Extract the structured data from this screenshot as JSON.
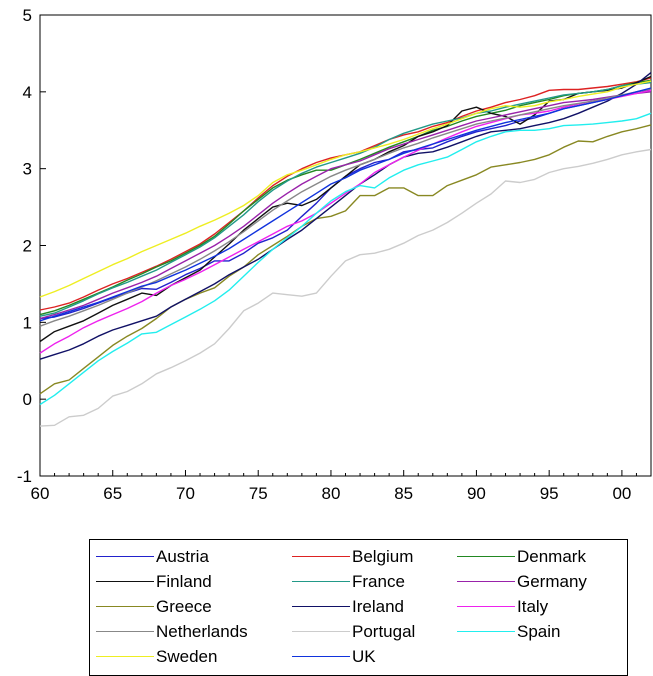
{
  "chart_data": {
    "type": "line",
    "title": "",
    "xlabel": "",
    "ylabel": "",
    "xlim": [
      1960,
      2002
    ],
    "ylim": [
      -1,
      5
    ],
    "y_ticks": [
      -1,
      0,
      1,
      2,
      3,
      4,
      5
    ],
    "x_ticks": [
      {
        "value": 1960,
        "label": "60"
      },
      {
        "value": 1965,
        "label": "65"
      },
      {
        "value": 1970,
        "label": "70"
      },
      {
        "value": 1975,
        "label": "75"
      },
      {
        "value": 1980,
        "label": "80"
      },
      {
        "value": 1985,
        "label": "85"
      },
      {
        "value": 1990,
        "label": "90"
      },
      {
        "value": 1995,
        "label": "95"
      },
      {
        "value": 2000,
        "label": "00"
      }
    ],
    "grid": false,
    "legend_position": "bottom",
    "x": [
      1960,
      1961,
      1962,
      1963,
      1964,
      1965,
      1966,
      1967,
      1968,
      1969,
      1970,
      1971,
      1972,
      1973,
      1974,
      1975,
      1976,
      1977,
      1978,
      1979,
      1980,
      1981,
      1982,
      1983,
      1984,
      1985,
      1986,
      1987,
      1988,
      1989,
      1990,
      1991,
      1992,
      1993,
      1994,
      1995,
      1996,
      1997,
      1998,
      1999,
      2000,
      2001,
      2002
    ],
    "series": [
      {
        "name": "Austria",
        "color": "#2222cc",
        "values": [
          1.05,
          1.07,
          1.12,
          1.18,
          1.25,
          1.32,
          1.38,
          1.44,
          1.43,
          1.52,
          1.62,
          1.7,
          1.8,
          1.8,
          1.9,
          2.03,
          2.1,
          2.2,
          2.38,
          2.55,
          2.75,
          2.9,
          3.0,
          3.08,
          3.12,
          3.22,
          3.25,
          3.27,
          3.35,
          3.42,
          3.48,
          3.52,
          3.56,
          3.62,
          3.66,
          3.72,
          3.78,
          3.82,
          3.86,
          3.9,
          3.95,
          4.0,
          4.03
        ]
      },
      {
        "name": "Belgium",
        "color": "#dd2222",
        "values": [
          1.16,
          1.2,
          1.25,
          1.33,
          1.42,
          1.5,
          1.57,
          1.65,
          1.73,
          1.82,
          1.92,
          2.02,
          2.15,
          2.3,
          2.45,
          2.62,
          2.78,
          2.9,
          3.0,
          3.08,
          3.14,
          3.18,
          3.22,
          3.3,
          3.38,
          3.44,
          3.48,
          3.55,
          3.6,
          3.68,
          3.75,
          3.8,
          3.86,
          3.9,
          3.95,
          4.02,
          4.03,
          4.03,
          4.05,
          4.07,
          4.1,
          4.13,
          4.18
        ]
      },
      {
        "name": "Denmark",
        "color": "#228822",
        "values": [
          1.1,
          1.15,
          1.22,
          1.3,
          1.38,
          1.46,
          1.55,
          1.63,
          1.72,
          1.8,
          1.9,
          2.0,
          2.12,
          2.28,
          2.45,
          2.6,
          2.75,
          2.85,
          2.92,
          2.98,
          2.98,
          3.05,
          3.12,
          3.2,
          3.28,
          3.35,
          3.42,
          3.5,
          3.55,
          3.62,
          3.68,
          3.72,
          3.76,
          3.82,
          3.86,
          3.9,
          3.95,
          3.98,
          4.0,
          4.03,
          4.08,
          4.12,
          4.15
        ]
      },
      {
        "name": "Finland",
        "color": "#111111",
        "values": [
          0.75,
          0.88,
          0.95,
          1.02,
          1.12,
          1.22,
          1.3,
          1.38,
          1.35,
          1.48,
          1.58,
          1.68,
          1.85,
          2.02,
          2.2,
          2.35,
          2.5,
          2.55,
          2.52,
          2.6,
          2.75,
          2.9,
          3.05,
          3.12,
          3.22,
          3.3,
          3.42,
          3.48,
          3.56,
          3.75,
          3.8,
          3.72,
          3.68,
          3.58,
          3.7,
          3.88,
          3.9,
          3.98,
          4.0,
          4.02,
          4.05,
          4.12,
          4.2
        ]
      },
      {
        "name": "France",
        "color": "#229988",
        "values": [
          1.08,
          1.12,
          1.2,
          1.28,
          1.37,
          1.45,
          1.52,
          1.6,
          1.68,
          1.78,
          1.88,
          1.98,
          2.1,
          2.25,
          2.4,
          2.57,
          2.72,
          2.84,
          2.94,
          3.02,
          3.08,
          3.14,
          3.2,
          3.28,
          3.38,
          3.46,
          3.52,
          3.58,
          3.62,
          3.66,
          3.72,
          3.75,
          3.8,
          3.84,
          3.88,
          3.92,
          3.96,
          3.98,
          4.0,
          4.03,
          4.08,
          4.1,
          4.12
        ]
      },
      {
        "name": "Germany",
        "color": "#9922aa",
        "values": [
          1.05,
          1.1,
          1.16,
          1.22,
          1.3,
          1.38,
          1.45,
          1.52,
          1.6,
          1.7,
          1.8,
          1.9,
          2.0,
          2.12,
          2.25,
          2.4,
          2.55,
          2.68,
          2.8,
          2.9,
          3.0,
          3.05,
          3.1,
          3.18,
          3.26,
          3.32,
          3.38,
          3.44,
          3.5,
          3.56,
          3.62,
          3.66,
          3.7,
          3.74,
          3.78,
          3.82,
          3.86,
          3.88,
          3.9,
          3.93,
          3.96,
          3.98,
          4.0
        ]
      },
      {
        "name": "Greece",
        "color": "#888822",
        "values": [
          0.07,
          0.2,
          0.25,
          0.4,
          0.55,
          0.7,
          0.82,
          0.92,
          1.05,
          1.2,
          1.3,
          1.38,
          1.45,
          1.6,
          1.72,
          1.88,
          2.0,
          2.12,
          2.25,
          2.35,
          2.38,
          2.45,
          2.65,
          2.65,
          2.75,
          2.75,
          2.65,
          2.65,
          2.78,
          2.85,
          2.92,
          3.02,
          3.05,
          3.08,
          3.12,
          3.18,
          3.28,
          3.36,
          3.35,
          3.42,
          3.48,
          3.52,
          3.57
        ]
      },
      {
        "name": "Ireland",
        "color": "#111166",
        "values": [
          0.52,
          0.58,
          0.64,
          0.72,
          0.82,
          0.9,
          0.96,
          1.02,
          1.08,
          1.2,
          1.3,
          1.4,
          1.5,
          1.62,
          1.72,
          1.82,
          1.95,
          2.08,
          2.2,
          2.35,
          2.5,
          2.65,
          2.8,
          2.92,
          3.05,
          3.15,
          3.2,
          3.22,
          3.28,
          3.35,
          3.42,
          3.48,
          3.5,
          3.52,
          3.56,
          3.6,
          3.65,
          3.72,
          3.8,
          3.88,
          3.98,
          4.1,
          4.25
        ]
      },
      {
        "name": "Italy",
        "color": "#ee22ee",
        "values": [
          0.6,
          0.72,
          0.82,
          0.93,
          1.02,
          1.1,
          1.18,
          1.27,
          1.38,
          1.48,
          1.56,
          1.65,
          1.75,
          1.85,
          1.95,
          2.05,
          2.15,
          2.25,
          2.32,
          2.42,
          2.55,
          2.68,
          2.8,
          2.95,
          3.05,
          3.15,
          3.24,
          3.32,
          3.4,
          3.48,
          3.55,
          3.6,
          3.65,
          3.7,
          3.72,
          3.75,
          3.8,
          3.84,
          3.88,
          3.9,
          3.94,
          3.98,
          4.02
        ]
      },
      {
        "name": "Netherlands",
        "color": "#888888",
        "values": [
          0.95,
          1.02,
          1.08,
          1.15,
          1.22,
          1.3,
          1.38,
          1.46,
          1.54,
          1.63,
          1.72,
          1.82,
          1.93,
          2.05,
          2.18,
          2.32,
          2.46,
          2.58,
          2.7,
          2.8,
          2.9,
          2.98,
          3.05,
          3.12,
          3.2,
          3.27,
          3.33,
          3.4,
          3.46,
          3.52,
          3.58,
          3.62,
          3.66,
          3.7,
          3.74,
          3.78,
          3.82,
          3.85,
          3.88,
          3.92,
          3.96,
          4.0,
          4.04
        ]
      },
      {
        "name": "Portugal",
        "color": "#cccccc",
        "values": [
          -0.35,
          -0.34,
          -0.23,
          -0.21,
          -0.12,
          0.04,
          0.1,
          0.2,
          0.33,
          0.41,
          0.5,
          0.6,
          0.72,
          0.92,
          1.15,
          1.25,
          1.38,
          1.36,
          1.34,
          1.38,
          1.6,
          1.8,
          1.88,
          1.9,
          1.95,
          2.03,
          2.13,
          2.2,
          2.3,
          2.42,
          2.55,
          2.67,
          2.84,
          2.82,
          2.86,
          2.95,
          3.0,
          3.03,
          3.07,
          3.12,
          3.18,
          3.22,
          3.25
        ]
      },
      {
        "name": "Spain",
        "color": "#22eeee",
        "values": [
          -0.07,
          0.05,
          0.2,
          0.35,
          0.5,
          0.62,
          0.73,
          0.85,
          0.87,
          0.97,
          1.07,
          1.17,
          1.28,
          1.42,
          1.6,
          1.78,
          1.95,
          2.1,
          2.25,
          2.42,
          2.58,
          2.7,
          2.78,
          2.75,
          2.88,
          2.98,
          3.05,
          3.1,
          3.15,
          3.25,
          3.35,
          3.42,
          3.48,
          3.5,
          3.5,
          3.52,
          3.56,
          3.57,
          3.58,
          3.6,
          3.62,
          3.65,
          3.72
        ]
      },
      {
        "name": "Sweden",
        "color": "#eeee22",
        "values": [
          1.33,
          1.4,
          1.48,
          1.57,
          1.66,
          1.75,
          1.83,
          1.92,
          2.0,
          2.08,
          2.16,
          2.25,
          2.33,
          2.42,
          2.52,
          2.65,
          2.82,
          2.92,
          2.98,
          3.05,
          3.12,
          3.18,
          3.22,
          3.27,
          3.32,
          3.38,
          3.45,
          3.52,
          3.58,
          3.65,
          3.72,
          3.78,
          3.82,
          3.8,
          3.82,
          3.87,
          3.9,
          3.94,
          3.97,
          4.0,
          4.06,
          4.1,
          4.14
        ]
      },
      {
        "name": "UK",
        "color": "#1133dd",
        "values": [
          1.02,
          1.08,
          1.14,
          1.2,
          1.26,
          1.33,
          1.4,
          1.47,
          1.52,
          1.6,
          1.68,
          1.77,
          1.86,
          1.96,
          2.08,
          2.2,
          2.32,
          2.44,
          2.56,
          2.68,
          2.8,
          2.88,
          2.98,
          3.05,
          3.12,
          3.2,
          3.26,
          3.32,
          3.38,
          3.44,
          3.5,
          3.55,
          3.6,
          3.64,
          3.68,
          3.72,
          3.78,
          3.82,
          3.86,
          3.9,
          3.95,
          4.0,
          4.05
        ]
      }
    ]
  }
}
